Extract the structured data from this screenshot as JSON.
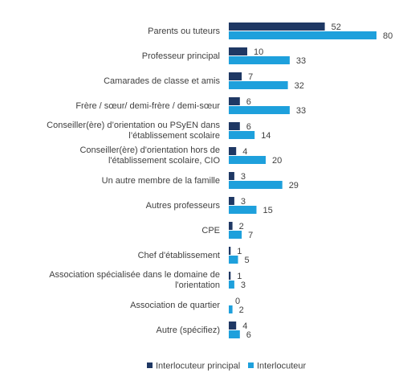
{
  "chart_data": {
    "type": "hbar",
    "categories": [
      "Parents ou tuteurs",
      "Professeur principal",
      "Camarades de classe et amis",
      "Frère / sœur/ demi-frère / demi-sœur",
      "Conseiller(ère)  d’orientation ou PSyEN dans l’établissement scolaire",
      "Conseiller(ère) d'orientation hors de l'établissement scolaire, CIO",
      "Un autre membre de la famille",
      "Autres professeurs",
      "CPE",
      "Chef d'établissement",
      "Association spécialisée dans le domaine de l'orientation",
      "Association de quartier",
      "Autre (spécifiez)"
    ],
    "series": [
      {
        "name": "Interlocuteur principal",
        "color": "#1f3864",
        "values": [
          52,
          10,
          7,
          6,
          6,
          4,
          3,
          3,
          2,
          1,
          1,
          0,
          4
        ]
      },
      {
        "name": "Interlocuteur",
        "color": "#1ea0dc",
        "values": [
          80,
          33,
          32,
          33,
          14,
          20,
          29,
          15,
          7,
          5,
          3,
          2,
          6
        ]
      }
    ],
    "legend": "bottom"
  }
}
